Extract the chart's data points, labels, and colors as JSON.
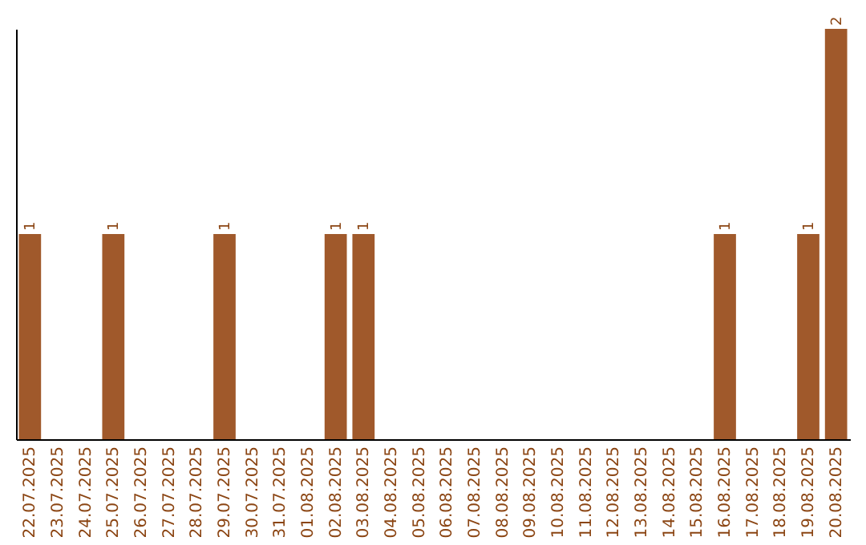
{
  "chart_data": {
    "type": "bar",
    "categories": [
      "22.07.2025",
      "23.07.2025",
      "24.07.2025",
      "25.07.2025",
      "26.07.2025",
      "27.07.2025",
      "28.07.2025",
      "29.07.2025",
      "30.07.2025",
      "31.07.2025",
      "01.08.2025",
      "02.08.2025",
      "03.08.2025",
      "04.08.2025",
      "05.08.2025",
      "06.08.2025",
      "07.08.2025",
      "08.08.2025",
      "09.08.2025",
      "10.08.2025",
      "11.08.2025",
      "12.08.2025",
      "13.08.2025",
      "14.08.2025",
      "15.08.2025",
      "16.08.2025",
      "17.08.2025",
      "18.08.2025",
      "19.08.2025",
      "20.08.2025"
    ],
    "values": [
      1,
      0,
      0,
      1,
      0,
      0,
      0,
      1,
      0,
      0,
      0,
      1,
      1,
      0,
      0,
      0,
      0,
      0,
      0,
      0,
      0,
      0,
      0,
      0,
      0,
      1,
      0,
      0,
      1,
      2
    ],
    "value_labels": [
      "1",
      null,
      null,
      "1",
      null,
      null,
      null,
      "1",
      null,
      null,
      null,
      "1",
      "1",
      null,
      null,
      null,
      null,
      null,
      null,
      null,
      null,
      null,
      null,
      null,
      null,
      "1",
      null,
      null,
      "1",
      "2"
    ],
    "color": "#a0592b",
    "tick_labels": "x"
  }
}
